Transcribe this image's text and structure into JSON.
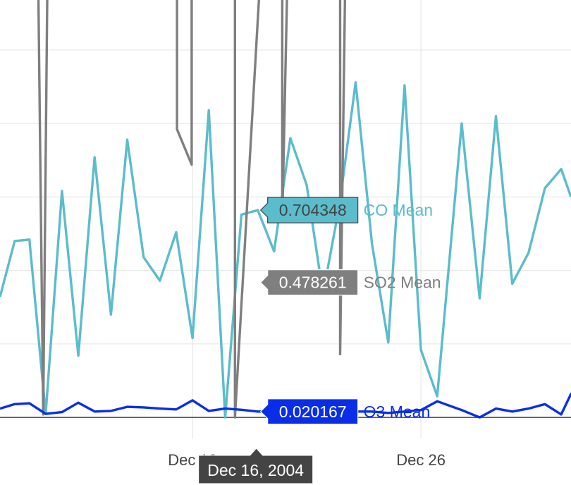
{
  "chart_data": {
    "type": "line",
    "title": "",
    "xlabel": "",
    "ylabel": "",
    "x_ticks": [
      {
        "label": "Dec 12",
        "day": 12
      },
      {
        "label": "Dec 26",
        "day": 26
      }
    ],
    "xlim": [
      0.2,
      35.2
    ],
    "ylim": [
      -0.23,
      1.42
    ],
    "y_gridlines": [
      0,
      0.25,
      0.5,
      0.75,
      1,
      1.25
    ],
    "hover": {
      "x_label": "Dec 16, 2004",
      "day": 16
    },
    "series": [
      {
        "name": "CO Mean",
        "color": "#5bbccc",
        "hover_value": "0.704348",
        "points": [
          [
            0.2,
            0.41
          ],
          [
            1.1,
            0.6
          ],
          [
            2.0,
            0.605
          ],
          [
            3.0,
            0.012
          ],
          [
            4.0,
            0.77
          ],
          [
            5.0,
            0.21
          ],
          [
            6.0,
            0.885
          ],
          [
            7.0,
            0.35
          ],
          [
            8.0,
            0.945
          ],
          [
            9.0,
            0.545
          ],
          [
            10.0,
            0.465
          ],
          [
            11.0,
            0.63
          ],
          [
            12.0,
            0.27
          ],
          [
            13.0,
            1.045
          ],
          [
            14.0,
            0.0
          ],
          [
            15.0,
            0.69
          ],
          [
            16.0,
            0.705
          ],
          [
            17.0,
            0.565
          ],
          [
            18.0,
            0.95
          ],
          [
            19.0,
            0.79
          ],
          [
            20.0,
            0.42
          ],
          [
            21.0,
            0.72
          ],
          [
            22.0,
            1.14
          ],
          [
            23.0,
            0.59
          ],
          [
            24.0,
            0.255
          ],
          [
            25.0,
            1.13
          ],
          [
            26.0,
            0.23
          ],
          [
            27.0,
            0.072
          ],
          [
            28.5,
            1.0
          ],
          [
            29.6,
            0.405
          ],
          [
            30.6,
            1.025
          ],
          [
            31.6,
            0.455
          ],
          [
            32.6,
            0.56
          ],
          [
            33.6,
            0.78
          ],
          [
            34.6,
            0.845
          ],
          [
            35.2,
            0.75
          ]
        ]
      },
      {
        "name": "SO2 Mean",
        "color": "#7f7f7f",
        "hover_value": "0.478261",
        "points": [
          [
            2.55,
            1.45
          ],
          [
            2.85,
            0.01
          ],
          [
            3.1,
            1.45
          ],
          [
            11.05,
            1.45
          ],
          [
            11.05,
            0.98
          ],
          [
            11.95,
            0.86
          ],
          [
            11.95,
            1.45
          ],
          [
            14.6,
            1.45
          ],
          [
            14.6,
            0.0
          ],
          [
            16.1,
            1.45
          ],
          [
            17.5,
            1.45
          ],
          [
            17.5,
            0.665
          ],
          [
            17.8,
            1.45
          ],
          [
            21.05,
            1.45
          ],
          [
            21.05,
            0.215
          ],
          [
            21.35,
            1.45
          ]
        ]
      },
      {
        "name": "O3 Mean",
        "color": "#0a2ee8",
        "hover_value": "0.020167",
        "points": [
          [
            0.2,
            0.03
          ],
          [
            1.1,
            0.045
          ],
          [
            2.0,
            0.048
          ],
          [
            3.0,
            0.012
          ],
          [
            4.0,
            0.018
          ],
          [
            5.0,
            0.05
          ],
          [
            6.0,
            0.02
          ],
          [
            7.0,
            0.022
          ],
          [
            8.0,
            0.036
          ],
          [
            9.0,
            0.034
          ],
          [
            10.0,
            0.03
          ],
          [
            11.0,
            0.027
          ],
          [
            12.0,
            0.058
          ],
          [
            13.0,
            0.022
          ],
          [
            14.0,
            0.03
          ],
          [
            15.0,
            0.026
          ],
          [
            16.0,
            0.02
          ],
          [
            17.0,
            0.02
          ],
          [
            18.0,
            0.022
          ],
          [
            19.0,
            0.015
          ],
          [
            20.0,
            0.02
          ],
          [
            21.0,
            0.012
          ],
          [
            22.0,
            0.02
          ],
          [
            23.0,
            0.02
          ],
          [
            24.0,
            0.015
          ],
          [
            25.0,
            0.02
          ],
          [
            26.0,
            0.025
          ],
          [
            27.0,
            0.055
          ],
          [
            28.5,
            0.025
          ],
          [
            29.6,
            0.0
          ],
          [
            30.6,
            0.03
          ],
          [
            31.6,
            0.02
          ],
          [
            32.6,
            0.03
          ],
          [
            33.6,
            0.045
          ],
          [
            34.6,
            0.01
          ],
          [
            35.2,
            0.08
          ],
          [
            36.0,
            0.04
          ]
        ]
      }
    ]
  }
}
